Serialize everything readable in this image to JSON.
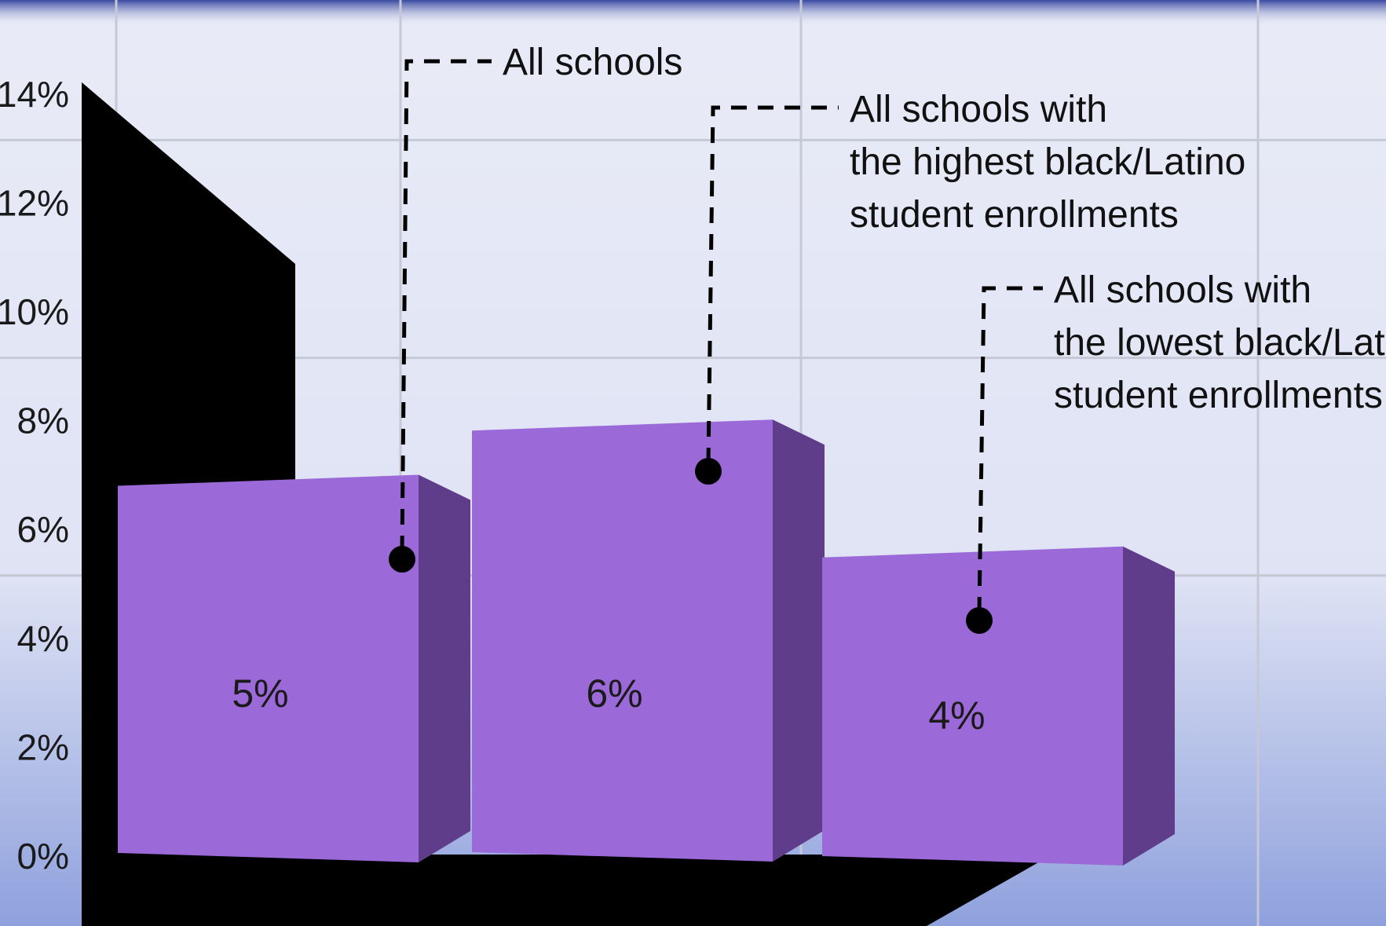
{
  "chart_data": {
    "type": "bar",
    "title": "",
    "xlabel": "",
    "ylabel": "",
    "categories": [
      "All schools",
      "All schools with the highest black/Latino student enrollments",
      "All schools with the lowest black/Latino student enrollments"
    ],
    "values": [
      5,
      6,
      4
    ],
    "value_labels": [
      "5%",
      "6%",
      "4%"
    ],
    "ylim": [
      0,
      14
    ],
    "yticks": [
      0,
      2,
      4,
      6,
      8,
      10,
      12,
      14
    ],
    "ytick_labels": [
      "0%",
      "2%",
      "4%",
      "6%",
      "8%",
      "10%",
      "12%",
      "14%"
    ],
    "annotations": [
      {
        "lines": [
          "All schools"
        ]
      },
      {
        "lines": [
          "All schools with",
          "the highest black/Latino",
          "student enrollments"
        ]
      },
      {
        "lines": [
          "All schools with",
          "the lowest black/Latino",
          "student enrollments"
        ]
      }
    ],
    "grid": true,
    "legend": "none",
    "style": "3d",
    "colors": {
      "bar_front": "#9b69d8",
      "bar_top": "#8a58c8",
      "bar_side": "#5f3d8a",
      "wall": "#000000",
      "grid": "#c6c8d6",
      "background_top": "#e9ebf7",
      "background_bottom": "#8fa1dd",
      "frame": "#3a4aa0"
    }
  }
}
